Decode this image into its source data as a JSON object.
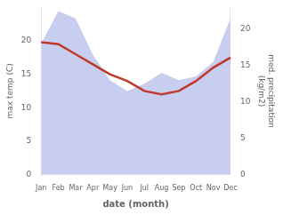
{
  "chart_data": {
    "type": "line",
    "categories": [
      "Jan",
      "Feb",
      "Mar",
      "Apr",
      "May",
      "Jun",
      "Jul",
      "Aug",
      "Sep",
      "Oct",
      "Nov",
      "Dec"
    ],
    "series": [
      {
        "type": "area",
        "color": "#aab4e8",
        "axis": "y2",
        "values": [
          18.0,
          22.5,
          21.5,
          16.5,
          13.0,
          11.5,
          12.5,
          14.0,
          13.0,
          13.5,
          15.5,
          21.5
        ]
      },
      {
        "type": "line",
        "color": "#c0392b",
        "axis": "y",
        "values": [
          19.8,
          19.5,
          18.0,
          16.5,
          15.0,
          14.0,
          12.5,
          12.0,
          12.5,
          14.0,
          16.0,
          17.5
        ]
      }
    ],
    "xlabel": "date (month)",
    "ylabel": "max temp (C)",
    "y2label": "med. precipitation\n(kg/m2)",
    "ylim": [
      0,
      25
    ],
    "yticks": [
      0,
      5,
      10,
      15,
      20
    ],
    "y2lim": [
      0,
      23
    ],
    "y2ticks": [
      0,
      5,
      10,
      15,
      20
    ],
    "grid": false
  }
}
